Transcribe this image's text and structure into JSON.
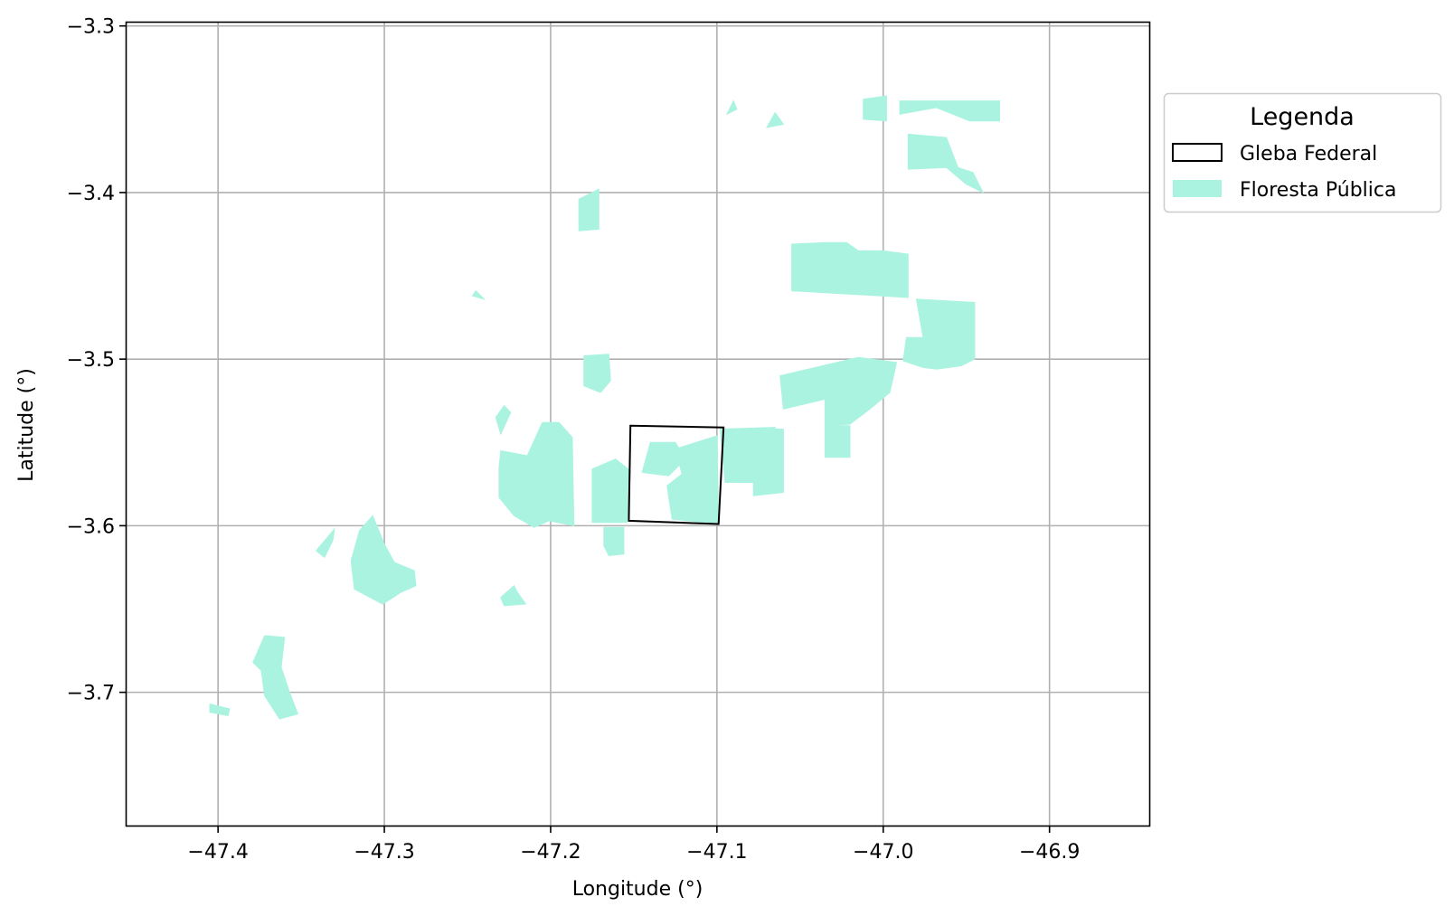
{
  "chart_data": {
    "type": "map",
    "xlabel": "Longitude (°)",
    "ylabel": "Latitude (°)",
    "xlim": [
      -47.455,
      -46.84
    ],
    "ylim": [
      -3.78,
      -3.298
    ],
    "x_ticks": [
      -47.4,
      -47.3,
      -47.2,
      -47.1,
      -47.0,
      -46.9
    ],
    "x_tick_labels": [
      "−47.4",
      "−47.3",
      "−47.2",
      "−47.1",
      "−47.0",
      "−46.9"
    ],
    "y_ticks": [
      -3.3,
      -3.4,
      -3.5,
      -3.6,
      -3.7
    ],
    "y_tick_labels": [
      "−3.3",
      "−3.4",
      "−3.5",
      "−3.6",
      "−3.7"
    ],
    "grid": true,
    "legend": {
      "title": "Legenda",
      "placement": "outside-right-top",
      "entries": [
        {
          "label": "Gleba Federal",
          "style": "outline",
          "color": "#000000"
        },
        {
          "label": "Floresta Pública",
          "style": "fill",
          "color": "#aaf3e0"
        }
      ]
    },
    "gleba_federal": [
      [
        -47.152,
        -3.54
      ],
      [
        -47.096,
        -3.541
      ],
      [
        -47.099,
        -3.599
      ],
      [
        -47.153,
        -3.597
      ]
    ],
    "floresta_publica": [
      [
        [
          -46.99,
          -3.345
        ],
        [
          -46.93,
          -3.345
        ],
        [
          -46.93,
          -3.357
        ],
        [
          -46.948,
          -3.357
        ],
        [
          -46.968,
          -3.349
        ],
        [
          -46.99,
          -3.353
        ]
      ],
      [
        [
          -46.985,
          -3.365
        ],
        [
          -46.962,
          -3.367
        ],
        [
          -46.955,
          -3.385
        ],
        [
          -46.946,
          -3.388
        ],
        [
          -46.94,
          -3.4
        ],
        [
          -46.95,
          -3.395
        ],
        [
          -46.962,
          -3.385
        ],
        [
          -46.985,
          -3.386
        ]
      ],
      [
        [
          -47.012,
          -3.344
        ],
        [
          -46.998,
          -3.342
        ],
        [
          -46.998,
          -3.357
        ],
        [
          -47.012,
          -3.356
        ]
      ],
      [
        [
          -47.055,
          -3.431
        ],
        [
          -47.035,
          -3.43
        ],
        [
          -47.022,
          -3.43
        ],
        [
          -47.015,
          -3.435
        ],
        [
          -47.0,
          -3.435
        ],
        [
          -46.985,
          -3.437
        ],
        [
          -46.985,
          -3.463
        ],
        [
          -47.055,
          -3.459
        ]
      ],
      [
        [
          -46.98,
          -3.464
        ],
        [
          -46.945,
          -3.466
        ],
        [
          -46.945,
          -3.5
        ],
        [
          -46.953,
          -3.504
        ],
        [
          -46.968,
          -3.506
        ],
        [
          -46.976,
          -3.505
        ],
        [
          -46.988,
          -3.501
        ],
        [
          -46.986,
          -3.487
        ],
        [
          -46.976,
          -3.487
        ]
      ],
      [
        [
          -47.078,
          -3.542
        ],
        [
          -47.06,
          -3.542
        ],
        [
          -47.06,
          -3.58
        ],
        [
          -47.078,
          -3.582
        ]
      ],
      [
        [
          -47.062,
          -3.51
        ],
        [
          -47.015,
          -3.499
        ],
        [
          -46.992,
          -3.502
        ],
        [
          -46.996,
          -3.52
        ],
        [
          -47.008,
          -3.53
        ],
        [
          -47.02,
          -3.539
        ],
        [
          -47.035,
          -3.54
        ],
        [
          -47.035,
          -3.524
        ],
        [
          -47.06,
          -3.53
        ]
      ],
      [
        [
          -47.035,
          -3.54
        ],
        [
          -47.02,
          -3.54
        ],
        [
          -47.02,
          -3.559
        ],
        [
          -47.035,
          -3.559
        ]
      ],
      [
        [
          -47.098,
          -3.542
        ],
        [
          -47.065,
          -3.541
        ],
        [
          -47.065,
          -3.574
        ],
        [
          -47.095,
          -3.574
        ]
      ],
      [
        [
          -47.125,
          -3.554
        ],
        [
          -47.1,
          -3.546
        ],
        [
          -47.099,
          -3.599
        ],
        [
          -47.127,
          -3.596
        ],
        [
          -47.13,
          -3.576
        ],
        [
          -47.121,
          -3.569
        ]
      ],
      [
        [
          -47.23,
          -3.555
        ],
        [
          -47.214,
          -3.558
        ],
        [
          -47.205,
          -3.538
        ],
        [
          -47.195,
          -3.538
        ],
        [
          -47.187,
          -3.547
        ],
        [
          -47.186,
          -3.6
        ],
        [
          -47.201,
          -3.597
        ],
        [
          -47.21,
          -3.601
        ],
        [
          -47.222,
          -3.594
        ],
        [
          -47.231,
          -3.583
        ],
        [
          -47.231,
          -3.565
        ]
      ],
      [
        [
          -47.233,
          -3.535
        ],
        [
          -47.228,
          -3.528
        ],
        [
          -47.224,
          -3.532
        ],
        [
          -47.23,
          -3.545
        ]
      ],
      [
        [
          -47.168,
          -3.601
        ],
        [
          -47.156,
          -3.601
        ],
        [
          -47.156,
          -3.617
        ],
        [
          -47.165,
          -3.618
        ],
        [
          -47.168,
          -3.612
        ]
      ],
      [
        [
          -47.307,
          -3.594
        ],
        [
          -47.3,
          -3.611
        ],
        [
          -47.294,
          -3.622
        ],
        [
          -47.282,
          -3.627
        ],
        [
          -47.281,
          -3.636
        ],
        [
          -47.29,
          -3.64
        ],
        [
          -47.301,
          -3.647
        ],
        [
          -47.318,
          -3.638
        ],
        [
          -47.32,
          -3.621
        ],
        [
          -47.315,
          -3.603
        ]
      ],
      [
        [
          -47.222,
          -3.636
        ],
        [
          -47.23,
          -3.643
        ],
        [
          -47.228,
          -3.648
        ],
        [
          -47.215,
          -3.647
        ],
        [
          -47.22,
          -3.64
        ]
      ],
      [
        [
          -47.33,
          -3.602
        ],
        [
          -47.341,
          -3.615
        ],
        [
          -47.336,
          -3.619
        ],
        [
          -47.331,
          -3.609
        ]
      ],
      [
        [
          -47.372,
          -3.666
        ],
        [
          -47.36,
          -3.667
        ],
        [
          -47.362,
          -3.685
        ],
        [
          -47.357,
          -3.7
        ],
        [
          -47.352,
          -3.713
        ],
        [
          -47.363,
          -3.716
        ],
        [
          -47.372,
          -3.702
        ],
        [
          -47.374,
          -3.687
        ],
        [
          -47.379,
          -3.682
        ]
      ],
      [
        [
          -47.405,
          -3.707
        ],
        [
          -47.393,
          -3.71
        ],
        [
          -47.394,
          -3.714
        ],
        [
          -47.405,
          -3.712
        ]
      ],
      [
        [
          -47.175,
          -3.598
        ],
        [
          -47.154,
          -3.598
        ],
        [
          -47.152,
          -3.567
        ],
        [
          -47.161,
          -3.56
        ],
        [
          -47.175,
          -3.566
        ]
      ],
      [
        [
          -47.14,
          -3.55
        ],
        [
          -47.125,
          -3.55
        ],
        [
          -47.119,
          -3.56
        ],
        [
          -47.129,
          -3.57
        ],
        [
          -47.145,
          -3.568
        ]
      ],
      [
        [
          -47.18,
          -3.498
        ],
        [
          -47.165,
          -3.497
        ],
        [
          -47.164,
          -3.513
        ],
        [
          -47.17,
          -3.52
        ],
        [
          -47.18,
          -3.516
        ]
      ]
    ],
    "floresta_publica_extra": [
      [
        [
          -47.183,
          -3.404
        ],
        [
          -47.171,
          -3.398
        ],
        [
          -47.171,
          -3.422
        ],
        [
          -47.183,
          -3.423
        ]
      ],
      [
        [
          -47.245,
          -3.459
        ],
        [
          -47.24,
          -3.464
        ],
        [
          -47.247,
          -3.462
        ]
      ],
      [
        [
          -47.09,
          -3.345
        ],
        [
          -47.088,
          -3.35
        ],
        [
          -47.094,
          -3.353
        ]
      ],
      [
        [
          -47.065,
          -3.352
        ],
        [
          -47.06,
          -3.359
        ],
        [
          -47.07,
          -3.361
        ]
      ]
    ]
  }
}
